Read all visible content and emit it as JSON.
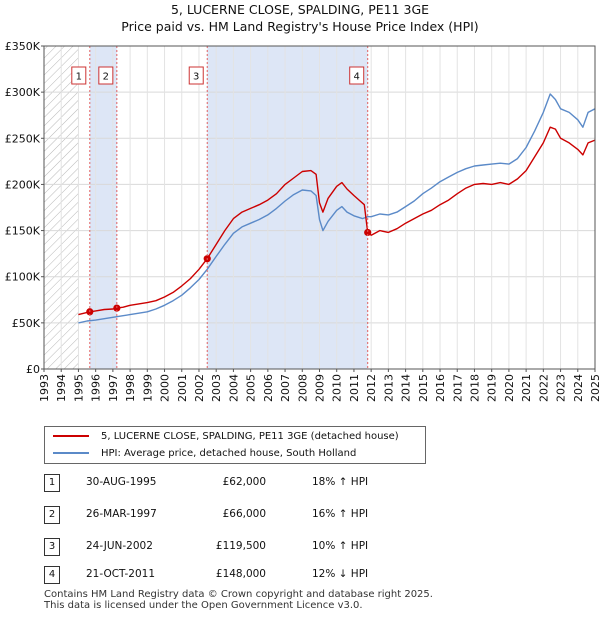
{
  "title": {
    "line1": "5, LUCERNE CLOSE, SPALDING, PE11 3GE",
    "line2": "Price paid vs. HM Land Registry's House Price Index (HPI)"
  },
  "colors": {
    "property": "#cc0000",
    "hpi": "#5b8ac8",
    "shade": "#dde6f6",
    "hatch": "#b8b8b8",
    "marker_line": "#e06060"
  },
  "legend": {
    "property_label": "5, LUCERNE CLOSE, SPALDING, PE11 3GE (detached house)",
    "hpi_label": "HPI: Average price, detached house, South Holland"
  },
  "transactions": [
    {
      "num": "1",
      "date": "30-AUG-1995",
      "price": "£62,000",
      "hpi": "18% ↑ HPI"
    },
    {
      "num": "2",
      "date": "26-MAR-1997",
      "price": "£66,000",
      "hpi": "16% ↑ HPI"
    },
    {
      "num": "3",
      "date": "24-JUN-2002",
      "price": "£119,500",
      "hpi": "10% ↑ HPI"
    },
    {
      "num": "4",
      "date": "21-OCT-2011",
      "price": "£148,000",
      "hpi": "12% ↓ HPI"
    }
  ],
  "footer": {
    "line1": "Contains HM Land Registry data © Crown copyright and database right 2025.",
    "line2": "This data is licensed under the Open Government Licence v3.0."
  },
  "chart_data": {
    "type": "line",
    "title": "5, LUCERNE CLOSE, SPALDING, PE11 3GE",
    "subtitle": "Price paid vs. HM Land Registry's House Price Index (HPI)",
    "xlabel": "",
    "ylabel": "",
    "xlim": [
      1993,
      2025
    ],
    "ylim": [
      0,
      350000
    ],
    "y_ticks": [
      0,
      50000,
      100000,
      150000,
      200000,
      250000,
      300000,
      350000
    ],
    "y_tick_labels": [
      "£0",
      "£50K",
      "£100K",
      "£150K",
      "£200K",
      "£250K",
      "£300K",
      "£350K"
    ],
    "x_ticks": [
      1993,
      1994,
      1995,
      1996,
      1997,
      1998,
      1999,
      2000,
      2001,
      2002,
      2003,
      2004,
      2005,
      2006,
      2007,
      2008,
      2009,
      2010,
      2011,
      2012,
      2013,
      2014,
      2015,
      2016,
      2017,
      2018,
      2019,
      2020,
      2021,
      2022,
      2023,
      2024,
      2025
    ],
    "x_tick_labels": [
      "1993",
      "1994",
      "1995",
      "1996",
      "1997",
      "1998",
      "1999",
      "2000",
      "2001",
      "2002",
      "2003",
      "2004",
      "2005",
      "2006",
      "2007",
      "2008",
      "2009",
      "2010",
      "2011",
      "2012",
      "2013",
      "2014",
      "2015",
      "2016",
      "2017",
      "2018",
      "2019",
      "2020",
      "2021",
      "2022",
      "2023",
      "2024",
      "2025"
    ],
    "grid": true,
    "legend_position": "below",
    "hatched_range": [
      1993,
      1995.0
    ],
    "shaded_ranges": [
      [
        1995.66,
        1997.23
      ],
      [
        2002.48,
        2011.8
      ]
    ],
    "sales": [
      {
        "label": "1",
        "x": 1995.66,
        "y": 62000
      },
      {
        "label": "2",
        "x": 1997.23,
        "y": 66000
      },
      {
        "label": "3",
        "x": 2002.48,
        "y": 119500
      },
      {
        "label": "4",
        "x": 2011.8,
        "y": 148000
      }
    ],
    "series": [
      {
        "name": "5, LUCERNE CLOSE, SPALDING, PE11 3GE (detached house)",
        "color": "#cc0000",
        "points": [
          [
            1995.0,
            59000
          ],
          [
            1995.66,
            62000
          ],
          [
            1996.0,
            63000
          ],
          [
            1996.5,
            64500
          ],
          [
            1997.0,
            65000
          ],
          [
            1997.23,
            66000
          ],
          [
            1997.6,
            67000
          ],
          [
            1998.0,
            69000
          ],
          [
            1998.5,
            70500
          ],
          [
            1999.0,
            72000
          ],
          [
            1999.5,
            74000
          ],
          [
            2000.0,
            78000
          ],
          [
            2000.5,
            83000
          ],
          [
            2001.0,
            90000
          ],
          [
            2001.5,
            98000
          ],
          [
            2002.0,
            108000
          ],
          [
            2002.48,
            119500
          ],
          [
            2003.0,
            135000
          ],
          [
            2003.5,
            150000
          ],
          [
            2004.0,
            163000
          ],
          [
            2004.5,
            170000
          ],
          [
            2005.0,
            174000
          ],
          [
            2005.5,
            178000
          ],
          [
            2006.0,
            183000
          ],
          [
            2006.5,
            190000
          ],
          [
            2007.0,
            200000
          ],
          [
            2007.5,
            207000
          ],
          [
            2008.0,
            214000
          ],
          [
            2008.5,
            215000
          ],
          [
            2008.8,
            211000
          ],
          [
            2009.0,
            180000
          ],
          [
            2009.2,
            170000
          ],
          [
            2009.5,
            185000
          ],
          [
            2010.0,
            198000
          ],
          [
            2010.3,
            202000
          ],
          [
            2010.6,
            195000
          ],
          [
            2011.0,
            188000
          ],
          [
            2011.3,
            183000
          ],
          [
            2011.6,
            178000
          ],
          [
            2011.8,
            148000
          ],
          [
            2012.0,
            145000
          ],
          [
            2012.5,
            150000
          ],
          [
            2013.0,
            148000
          ],
          [
            2013.5,
            152000
          ],
          [
            2014.0,
            158000
          ],
          [
            2014.5,
            163000
          ],
          [
            2015.0,
            168000
          ],
          [
            2015.5,
            172000
          ],
          [
            2016.0,
            178000
          ],
          [
            2016.5,
            183000
          ],
          [
            2017.0,
            190000
          ],
          [
            2017.5,
            196000
          ],
          [
            2018.0,
            200000
          ],
          [
            2018.5,
            201000
          ],
          [
            2019.0,
            200000
          ],
          [
            2019.5,
            202000
          ],
          [
            2020.0,
            200000
          ],
          [
            2020.5,
            206000
          ],
          [
            2021.0,
            215000
          ],
          [
            2021.5,
            230000
          ],
          [
            2022.0,
            245000
          ],
          [
            2022.4,
            262000
          ],
          [
            2022.7,
            260000
          ],
          [
            2023.0,
            250000
          ],
          [
            2023.5,
            245000
          ],
          [
            2024.0,
            238000
          ],
          [
            2024.3,
            232000
          ],
          [
            2024.6,
            245000
          ],
          [
            2025.0,
            248000
          ]
        ]
      },
      {
        "name": "HPI: Average price, detached house, South Holland",
        "color": "#5b8ac8",
        "points": [
          [
            1995.0,
            50000
          ],
          [
            1995.5,
            52000
          ],
          [
            1996.0,
            53000
          ],
          [
            1996.5,
            54500
          ],
          [
            1997.0,
            56000
          ],
          [
            1997.5,
            57500
          ],
          [
            1998.0,
            59000
          ],
          [
            1998.5,
            60500
          ],
          [
            1999.0,
            62000
          ],
          [
            1999.5,
            65000
          ],
          [
            2000.0,
            69000
          ],
          [
            2000.5,
            74000
          ],
          [
            2001.0,
            80000
          ],
          [
            2001.5,
            88000
          ],
          [
            2002.0,
            97000
          ],
          [
            2002.48,
            108000
          ],
          [
            2003.0,
            122000
          ],
          [
            2003.5,
            135000
          ],
          [
            2004.0,
            147000
          ],
          [
            2004.5,
            154000
          ],
          [
            2005.0,
            158000
          ],
          [
            2005.5,
            162000
          ],
          [
            2006.0,
            167000
          ],
          [
            2006.5,
            174000
          ],
          [
            2007.0,
            182000
          ],
          [
            2007.5,
            189000
          ],
          [
            2008.0,
            194000
          ],
          [
            2008.5,
            193000
          ],
          [
            2008.8,
            188000
          ],
          [
            2009.0,
            162000
          ],
          [
            2009.2,
            150000
          ],
          [
            2009.5,
            160000
          ],
          [
            2010.0,
            172000
          ],
          [
            2010.3,
            176000
          ],
          [
            2010.6,
            170000
          ],
          [
            2011.0,
            166000
          ],
          [
            2011.5,
            163000
          ],
          [
            2011.8,
            165000
          ],
          [
            2012.0,
            165000
          ],
          [
            2012.5,
            168000
          ],
          [
            2013.0,
            167000
          ],
          [
            2013.5,
            170000
          ],
          [
            2014.0,
            176000
          ],
          [
            2014.5,
            182000
          ],
          [
            2015.0,
            190000
          ],
          [
            2015.5,
            196000
          ],
          [
            2016.0,
            203000
          ],
          [
            2016.5,
            208000
          ],
          [
            2017.0,
            213000
          ],
          [
            2017.5,
            217000
          ],
          [
            2018.0,
            220000
          ],
          [
            2018.5,
            221000
          ],
          [
            2019.0,
            222000
          ],
          [
            2019.5,
            223000
          ],
          [
            2020.0,
            222000
          ],
          [
            2020.5,
            228000
          ],
          [
            2021.0,
            240000
          ],
          [
            2021.5,
            258000
          ],
          [
            2022.0,
            278000
          ],
          [
            2022.4,
            298000
          ],
          [
            2022.7,
            292000
          ],
          [
            2023.0,
            282000
          ],
          [
            2023.5,
            278000
          ],
          [
            2024.0,
            270000
          ],
          [
            2024.3,
            262000
          ],
          [
            2024.6,
            278000
          ],
          [
            2025.0,
            282000
          ]
        ]
      }
    ]
  }
}
